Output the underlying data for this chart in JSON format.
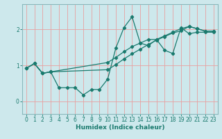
{
  "xlabel": "Humidex (Indice chaleur)",
  "background_color": "#cde8ec",
  "grid_color": "#e8a0a0",
  "line_color": "#1a7a6e",
  "xlim": [
    -0.5,
    23.5
  ],
  "ylim": [
    -0.35,
    2.7
  ],
  "xticks": [
    0,
    1,
    2,
    3,
    4,
    5,
    6,
    7,
    8,
    9,
    10,
    11,
    12,
    13,
    14,
    15,
    16,
    17,
    18,
    19,
    20,
    21,
    22,
    23
  ],
  "yticks": [
    0,
    1,
    2
  ],
  "lines": [
    {
      "x": [
        0,
        1,
        2,
        3,
        4,
        5,
        6,
        7,
        8,
        9,
        10,
        11,
        12,
        13,
        14,
        15,
        16,
        17,
        18,
        19,
        20,
        21,
        22,
        23
      ],
      "y": [
        0.92,
        1.05,
        0.78,
        0.82,
        0.38,
        0.38,
        0.38,
        0.18,
        0.33,
        0.33,
        0.62,
        1.48,
        2.05,
        2.35,
        1.62,
        1.55,
        1.72,
        1.42,
        1.33,
        2.05,
        1.88,
        1.92,
        1.92,
        1.92
      ]
    },
    {
      "x": [
        0,
        1,
        2,
        3,
        10,
        11,
        12,
        13,
        14,
        15,
        16,
        17,
        18,
        19,
        20,
        21,
        22,
        23
      ],
      "y": [
        0.92,
        1.05,
        0.78,
        0.82,
        1.08,
        1.22,
        1.38,
        1.52,
        1.62,
        1.72,
        1.72,
        1.82,
        1.92,
        2.02,
        2.08,
        2.02,
        1.95,
        1.95
      ]
    },
    {
      "x": [
        0,
        1,
        2,
        3,
        10,
        11,
        12,
        13,
        14,
        15,
        16,
        17,
        18,
        19,
        20,
        21,
        22,
        23
      ],
      "y": [
        0.92,
        1.05,
        0.78,
        0.82,
        0.88,
        1.02,
        1.18,
        1.32,
        1.45,
        1.58,
        1.7,
        1.8,
        1.9,
        1.96,
        2.08,
        2.02,
        1.95,
        1.95
      ]
    }
  ]
}
